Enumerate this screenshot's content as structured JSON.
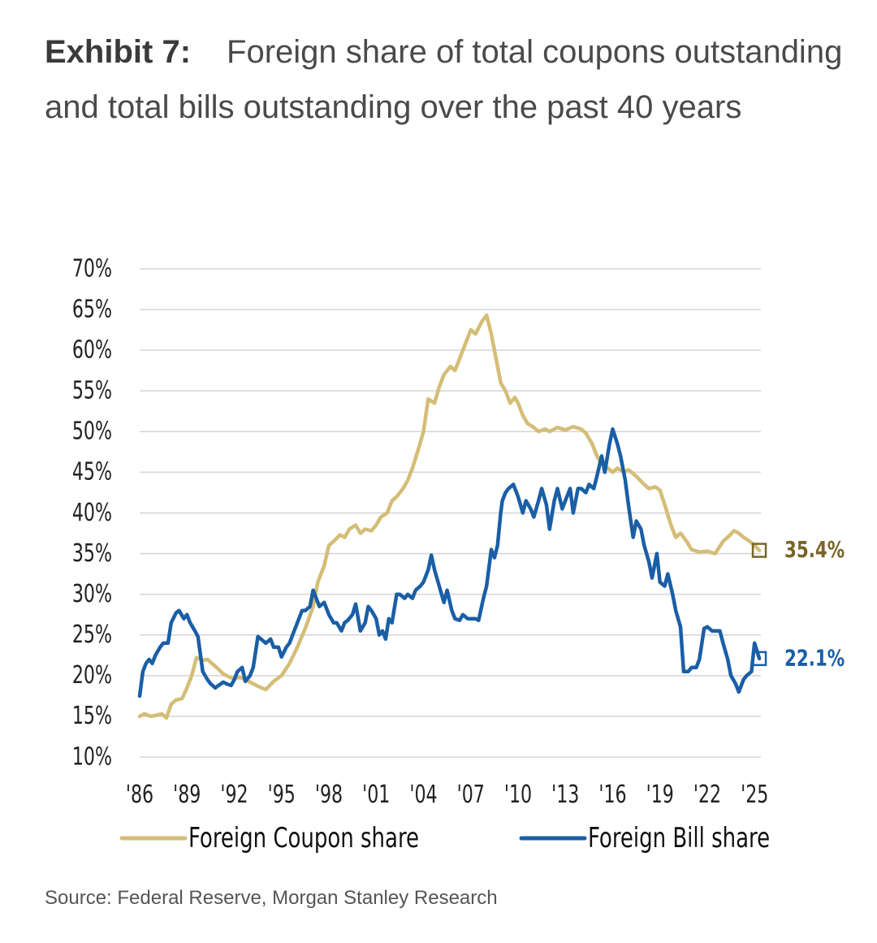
{
  "header": {
    "exhibit_label": "Exhibit 7:",
    "title": "Foreign share of total coupons outstanding and total bills outstanding over the past 40 years"
  },
  "footer": {
    "source": "Source: Federal Reserve, Morgan Stanley Research"
  },
  "chart_data": {
    "type": "line",
    "title": "Foreign share of total coupons outstanding and total bills outstanding over the past 40 years",
    "xlabel": "",
    "ylabel": "",
    "xlim": [
      1986,
      2025.4
    ],
    "ylim": [
      10,
      70
    ],
    "grid": true,
    "legend_position": "bottom",
    "y_ticks": [
      10,
      15,
      20,
      25,
      30,
      35,
      40,
      45,
      50,
      55,
      60,
      65,
      70
    ],
    "y_tick_labels": [
      "10%",
      "15%",
      "20%",
      "25%",
      "30%",
      "35%",
      "40%",
      "45%",
      "50%",
      "55%",
      "60%",
      "65%",
      "70%"
    ],
    "x_ticks": [
      1986,
      1989,
      1992,
      1995,
      1998,
      2001,
      2004,
      2007,
      2010,
      2013,
      2016,
      2019,
      2022,
      2025
    ],
    "x_tick_labels": [
      "'86",
      "'89",
      "'92",
      "'95",
      "'98",
      "'01",
      "'04",
      "'07",
      "'10",
      "'13",
      "'16",
      "'19",
      "'22",
      "'25"
    ],
    "colors": {
      "coupon": "#d4bd77",
      "bill": "#1a5ea6",
      "coupon_label": "#7a6528",
      "bill_label": "#1a5ea6",
      "grid": "#d5d5d5",
      "axis_text": "#222222"
    },
    "series": [
      {
        "name": "Foreign Coupon share",
        "key": "coupon",
        "end_label": "35.4%",
        "x": [
          1986.0,
          1986.3,
          1986.7,
          1987.0,
          1987.4,
          1987.7,
          1988.0,
          1988.3,
          1988.7,
          1989.0,
          1989.3,
          1989.6,
          1990.0,
          1990.3,
          1990.7,
          1991.0,
          1991.3,
          1991.7,
          1992.0,
          1992.3,
          1992.7,
          1993.0,
          1993.5,
          1994.0,
          1994.5,
          1995.0,
          1995.5,
          1996.0,
          1996.5,
          1997.0,
          1997.3,
          1997.7,
          1998.0,
          1998.3,
          1998.7,
          1999.0,
          1999.3,
          1999.7,
          2000.0,
          2000.3,
          2000.7,
          2001.0,
          2001.3,
          2001.7,
          2002.0,
          2002.3,
          2002.7,
          2003.0,
          2003.3,
          2003.7,
          2004.0,
          2004.3,
          2004.7,
          2005.0,
          2005.3,
          2005.7,
          2006.0,
          2006.3,
          2006.7,
          2007.0,
          2007.3,
          2007.7,
          2008.0,
          2008.3,
          2008.6,
          2008.9,
          2009.2,
          2009.5,
          2009.8,
          2010.0,
          2010.3,
          2010.6,
          2011.0,
          2011.3,
          2011.7,
          2012.0,
          2012.5,
          2013.0,
          2013.5,
          2014.0,
          2014.3,
          2014.7,
          2015.0,
          2015.3,
          2015.7,
          2016.0,
          2016.3,
          2016.7,
          2017.0,
          2017.5,
          2018.0,
          2018.3,
          2018.7,
          2019.0,
          2019.3,
          2019.7,
          2020.0,
          2020.3,
          2020.7,
          2021.0,
          2021.5,
          2022.0,
          2022.5,
          2023.0,
          2023.3,
          2023.7,
          2024.0,
          2024.3,
          2024.7,
          2025.0,
          2025.3
        ],
        "values": [
          15.0,
          15.3,
          15.0,
          15.1,
          15.3,
          14.8,
          16.5,
          17.0,
          17.2,
          18.5,
          20.0,
          22.2,
          21.9,
          22.0,
          21.3,
          20.8,
          20.2,
          19.8,
          19.6,
          19.8,
          19.5,
          19.2,
          18.7,
          18.3,
          19.3,
          20.0,
          21.5,
          23.5,
          25.8,
          28.5,
          31.5,
          33.5,
          36.0,
          36.5,
          37.3,
          37.0,
          38.0,
          38.5,
          37.5,
          38.0,
          37.8,
          38.5,
          39.5,
          40.0,
          41.5,
          42.0,
          43.0,
          44.0,
          45.5,
          48.0,
          50.0,
          54.0,
          53.5,
          55.5,
          57.0,
          58.0,
          57.5,
          59.0,
          61.0,
          62.5,
          62.0,
          63.5,
          64.3,
          62.0,
          59.0,
          56.0,
          55.0,
          53.5,
          54.2,
          53.5,
          52.0,
          51.0,
          50.5,
          50.0,
          50.3,
          50.0,
          50.5,
          50.2,
          50.6,
          50.3,
          49.8,
          48.5,
          47.0,
          46.0,
          45.5,
          45.0,
          45.5,
          45.0,
          45.3,
          44.5,
          43.5,
          43.0,
          43.2,
          42.8,
          41.0,
          38.5,
          37.0,
          37.5,
          36.5,
          35.5,
          35.2,
          35.3,
          35.0,
          36.5,
          37.0,
          37.8,
          37.5,
          37.0,
          36.5,
          36.0,
          35.4
        ]
      },
      {
        "name": "Foreign Bill share",
        "key": "bill",
        "end_label": "22.1%",
        "x": [
          1986.0,
          1986.2,
          1986.4,
          1986.6,
          1986.8,
          1987.0,
          1987.3,
          1987.5,
          1987.8,
          1988.0,
          1988.3,
          1988.5,
          1988.8,
          1989.0,
          1989.2,
          1989.5,
          1989.7,
          1990.0,
          1990.3,
          1990.5,
          1990.8,
          1991.0,
          1991.3,
          1991.5,
          1991.8,
          1992.0,
          1992.2,
          1992.5,
          1992.7,
          1993.0,
          1993.2,
          1993.5,
          1993.7,
          1994.0,
          1994.3,
          1994.5,
          1994.8,
          1995.0,
          1995.3,
          1995.5,
          1995.8,
          1996.0,
          1996.3,
          1996.5,
          1996.8,
          1997.0,
          1997.2,
          1997.4,
          1997.7,
          1998.0,
          1998.3,
          1998.5,
          1998.8,
          1999.0,
          1999.2,
          1999.5,
          1999.7,
          2000.0,
          2000.3,
          2000.5,
          2000.7,
          2001.0,
          2001.2,
          2001.4,
          2001.6,
          2001.8,
          2002.0,
          2002.3,
          2002.5,
          2002.8,
          2003.0,
          2003.3,
          2003.5,
          2003.8,
          2004.0,
          2004.3,
          2004.5,
          2004.7,
          2005.0,
          2005.3,
          2005.5,
          2005.8,
          2006.0,
          2006.3,
          2006.5,
          2006.8,
          2007.0,
          2007.3,
          2007.5,
          2007.8,
          2008.0,
          2008.3,
          2008.5,
          2008.7,
          2008.9,
          2009.0,
          2009.2,
          2009.4,
          2009.7,
          2010.0,
          2010.3,
          2010.5,
          2010.8,
          2011.0,
          2011.3,
          2011.5,
          2011.8,
          2012.0,
          2012.3,
          2012.5,
          2012.8,
          2013.0,
          2013.3,
          2013.5,
          2013.8,
          2014.0,
          2014.3,
          2014.5,
          2014.8,
          2015.0,
          2015.3,
          2015.5,
          2015.8,
          2016.0,
          2016.3,
          2016.5,
          2016.8,
          2017.0,
          2017.3,
          2017.5,
          2017.8,
          2018.0,
          2018.3,
          2018.5,
          2018.8,
          2019.0,
          2019.3,
          2019.5,
          2019.8,
          2020.0,
          2020.3,
          2020.5,
          2020.8,
          2021.0,
          2021.3,
          2021.5,
          2021.8,
          2022.0,
          2022.3,
          2022.5,
          2022.8,
          2023.0,
          2023.3,
          2023.5,
          2023.8,
          2024.0,
          2024.3,
          2024.5,
          2024.8,
          2025.0,
          2025.3
        ],
        "values": [
          17.5,
          20.5,
          21.5,
          22.0,
          21.5,
          22.5,
          23.5,
          24.0,
          24.0,
          26.5,
          27.7,
          28.0,
          27.0,
          27.5,
          26.5,
          25.5,
          24.8,
          20.5,
          19.5,
          19.0,
          18.5,
          18.8,
          19.2,
          19.0,
          18.8,
          19.5,
          20.5,
          21.0,
          19.3,
          20.0,
          21.0,
          24.8,
          24.5,
          24.0,
          24.5,
          23.5,
          23.5,
          22.3,
          23.5,
          24.0,
          25.5,
          26.5,
          28.0,
          28.0,
          28.5,
          30.5,
          29.5,
          28.5,
          29.0,
          27.5,
          26.5,
          26.5,
          25.5,
          26.5,
          26.8,
          27.5,
          28.8,
          25.5,
          26.5,
          28.5,
          28.0,
          27.0,
          25.0,
          25.5,
          24.5,
          27.0,
          26.5,
          30.0,
          30.0,
          29.5,
          30.0,
          29.5,
          30.5,
          31.0,
          31.5,
          33.0,
          34.8,
          33.0,
          31.0,
          29.0,
          30.5,
          28.0,
          27.0,
          26.8,
          27.5,
          27.0,
          27.0,
          27.0,
          26.8,
          29.5,
          31.0,
          35.5,
          34.5,
          36.0,
          40.0,
          41.5,
          42.5,
          43.0,
          43.5,
          42.0,
          40.0,
          41.5,
          40.5,
          39.5,
          41.5,
          43.0,
          41.0,
          38.0,
          41.5,
          43.0,
          40.5,
          41.5,
          43.0,
          40.0,
          43.0,
          43.0,
          42.5,
          43.5,
          43.0,
          44.5,
          47.0,
          45.0,
          48.5,
          50.3,
          48.5,
          47.0,
          44.0,
          41.0,
          37.0,
          39.0,
          38.0,
          36.0,
          34.0,
          32.0,
          35.0,
          31.5,
          31.0,
          32.5,
          30.0,
          28.0,
          26.0,
          20.5,
          20.5,
          21.0,
          21.0,
          22.0,
          25.8,
          26.0,
          25.5,
          25.5,
          25.5,
          24.0,
          22.0,
          20.0,
          19.0,
          18.0,
          19.5,
          20.0,
          20.5,
          24.0,
          22.1
        ]
      }
    ]
  }
}
